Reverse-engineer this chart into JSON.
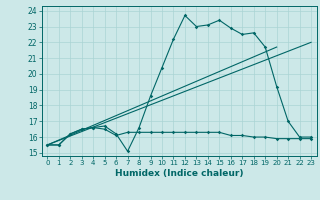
{
  "title": "",
  "xlabel": "Humidex (Indice chaleur)",
  "bg_color": "#cce8e8",
  "grid_color": "#aad4d4",
  "line_color": "#006666",
  "xlim": [
    -0.5,
    23.5
  ],
  "ylim": [
    14.8,
    24.3
  ],
  "yticks": [
    15,
    16,
    17,
    18,
    19,
    20,
    21,
    22,
    23,
    24
  ],
  "xticks": [
    0,
    1,
    2,
    3,
    4,
    5,
    6,
    7,
    8,
    9,
    10,
    11,
    12,
    13,
    14,
    15,
    16,
    17,
    18,
    19,
    20,
    21,
    22,
    23
  ],
  "series1": {
    "x": [
      0,
      1,
      2,
      3,
      4,
      5,
      6,
      7,
      8,
      9,
      10,
      11,
      12,
      13,
      14,
      15,
      16,
      17,
      18,
      19,
      20,
      21,
      22,
      23
    ],
    "y": [
      15.5,
      15.5,
      16.2,
      16.5,
      16.6,
      16.7,
      16.2,
      15.1,
      16.6,
      18.6,
      20.4,
      22.2,
      23.7,
      23.0,
      23.1,
      23.4,
      22.9,
      22.5,
      22.6,
      21.7,
      19.2,
      17.0,
      16.0,
      16.0
    ]
  },
  "series2": {
    "x": [
      0,
      1,
      2,
      3,
      4,
      5,
      6,
      7,
      8,
      9,
      10,
      11,
      12,
      13,
      14,
      15,
      16,
      17,
      18,
      19,
      20,
      21,
      22,
      23
    ],
    "y": [
      15.5,
      15.5,
      16.2,
      16.5,
      16.6,
      16.5,
      16.1,
      16.3,
      16.3,
      16.3,
      16.3,
      16.3,
      16.3,
      16.3,
      16.3,
      16.3,
      16.1,
      16.1,
      16.0,
      16.0,
      15.9,
      15.9,
      15.9,
      15.9
    ]
  },
  "series3": {
    "x": [
      0,
      23
    ],
    "y": [
      15.5,
      22.0
    ]
  },
  "series4": {
    "x": [
      0,
      20
    ],
    "y": [
      15.5,
      21.7
    ]
  }
}
